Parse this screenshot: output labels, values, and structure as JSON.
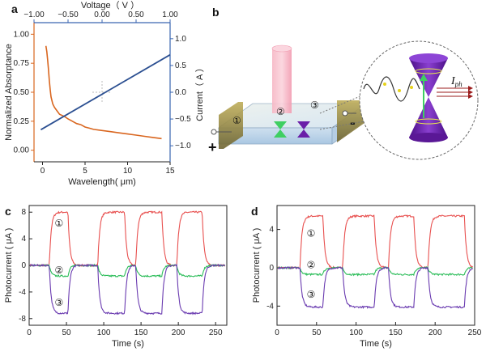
{
  "panels": {
    "a": "a",
    "b": "b",
    "c": "c",
    "d": "d"
  },
  "colors": {
    "absorptance": "#d9661f",
    "current": "#2b4f91",
    "blue_axis": "#3a66b0",
    "trace1": "#e8504f",
    "trace2": "#2dbd5a",
    "trace3": "#6a3bb0",
    "cone_purple": "#6a1fa8",
    "cone_green": "#4fd16b",
    "beam_pink": "#f4a3b3"
  },
  "diagram": {
    "plus": "+",
    "minus": "-",
    "markers": [
      "①",
      "②",
      "③"
    ],
    "iph_label": "I",
    "iph_sub": "ph"
  },
  "chart_data": [
    {
      "id": "a",
      "type": "line",
      "xlabel": "Wavelength( μm)",
      "x2label": "Voltage（ V ）",
      "ylabel": "Normalized Absorptance",
      "y2label": "Current（ A ）",
      "xlim": [
        -1,
        15
      ],
      "xticks": [
        0,
        5,
        10,
        15
      ],
      "ylim": [
        -0.1,
        1.1
      ],
      "yticks": [
        "0.00",
        "0.25",
        "0.50",
        "0.75",
        "1.00"
      ],
      "x2lim": [
        -1.0,
        1.0
      ],
      "x2ticks": [
        "−1.00",
        "−0.50",
        "0.00",
        "0.50",
        "1.00"
      ],
      "y2lim": [
        -1.3,
        1.3
      ],
      "y2ticks": [
        "−1.0",
        "−0.5",
        "0.0",
        "0.5",
        "1.0"
      ],
      "series": [
        {
          "axis": "primary",
          "x": [
            0.4,
            0.5,
            0.6,
            0.7,
            0.8,
            0.9,
            1.0,
            1.2,
            1.4,
            1.6,
            1.8,
            2.0,
            2.3,
            2.6,
            3.0,
            3.5,
            4.0,
            4.5,
            5.0,
            5.5,
            6.0,
            7.0,
            8.0,
            9.0,
            10.0,
            11.0,
            12.0,
            13.0,
            14.0
          ],
          "y": [
            0.9,
            0.85,
            0.78,
            0.7,
            0.6,
            0.52,
            0.46,
            0.4,
            0.37,
            0.35,
            0.33,
            0.31,
            0.3,
            0.29,
            0.27,
            0.25,
            0.23,
            0.22,
            0.2,
            0.19,
            0.18,
            0.17,
            0.16,
            0.15,
            0.14,
            0.13,
            0.12,
            0.11,
            0.1
          ]
        },
        {
          "axis": "secondary",
          "x": [
            -0.9,
            1.0
          ],
          "y": [
            -0.7,
            0.7
          ]
        }
      ]
    },
    {
      "id": "c",
      "type": "line",
      "xlabel": "Time (s)",
      "ylabel": "Photocurrent ( μA )",
      "xlim": [
        0,
        265
      ],
      "xticks": [
        0,
        50,
        100,
        150,
        200,
        250
      ],
      "ylim": [
        -9,
        9
      ],
      "yticks": [
        -8,
        -4,
        0,
        4,
        8
      ],
      "on_intervals": [
        [
          27,
          52
        ],
        [
          92,
          128
        ],
        [
          143,
          178
        ],
        [
          198,
          232
        ]
      ],
      "series": [
        {
          "marker": "①",
          "baseline": 0.0,
          "on_level": 8.0
        },
        {
          "marker": "②",
          "baseline": 0.0,
          "on_level": -1.6
        },
        {
          "marker": "③",
          "baseline": 0.0,
          "on_level": -7.2
        }
      ],
      "marker_positions": {
        "①": [
          40,
          6.3
        ],
        "②": [
          40,
          -0.7
        ],
        "③": [
          40,
          -5.6
        ]
      }
    },
    {
      "id": "d",
      "type": "line",
      "xlabel": "Time (s)",
      "ylabel": "Photocurrent ( μA )",
      "xlim": [
        0,
        250
      ],
      "xticks": [
        0,
        50,
        100,
        150,
        200,
        250
      ],
      "ylim": [
        -6,
        6.5
      ],
      "yticks": [
        -4,
        0,
        4
      ],
      "on_intervals": [
        [
          29,
          58
        ],
        [
          83,
          123
        ],
        [
          141,
          173
        ],
        [
          191,
          237
        ]
      ],
      "series": [
        {
          "marker": "①",
          "baseline": 0.0,
          "on_level": 5.4
        },
        {
          "marker": "②",
          "baseline": 0.0,
          "on_level": -0.7
        },
        {
          "marker": "③",
          "baseline": 0.0,
          "on_level": -4.1
        }
      ],
      "marker_positions": {
        "①": [
          43,
          3.6
        ],
        "②": [
          43,
          0.3
        ],
        "③": [
          43,
          -2.8
        ]
      }
    }
  ]
}
